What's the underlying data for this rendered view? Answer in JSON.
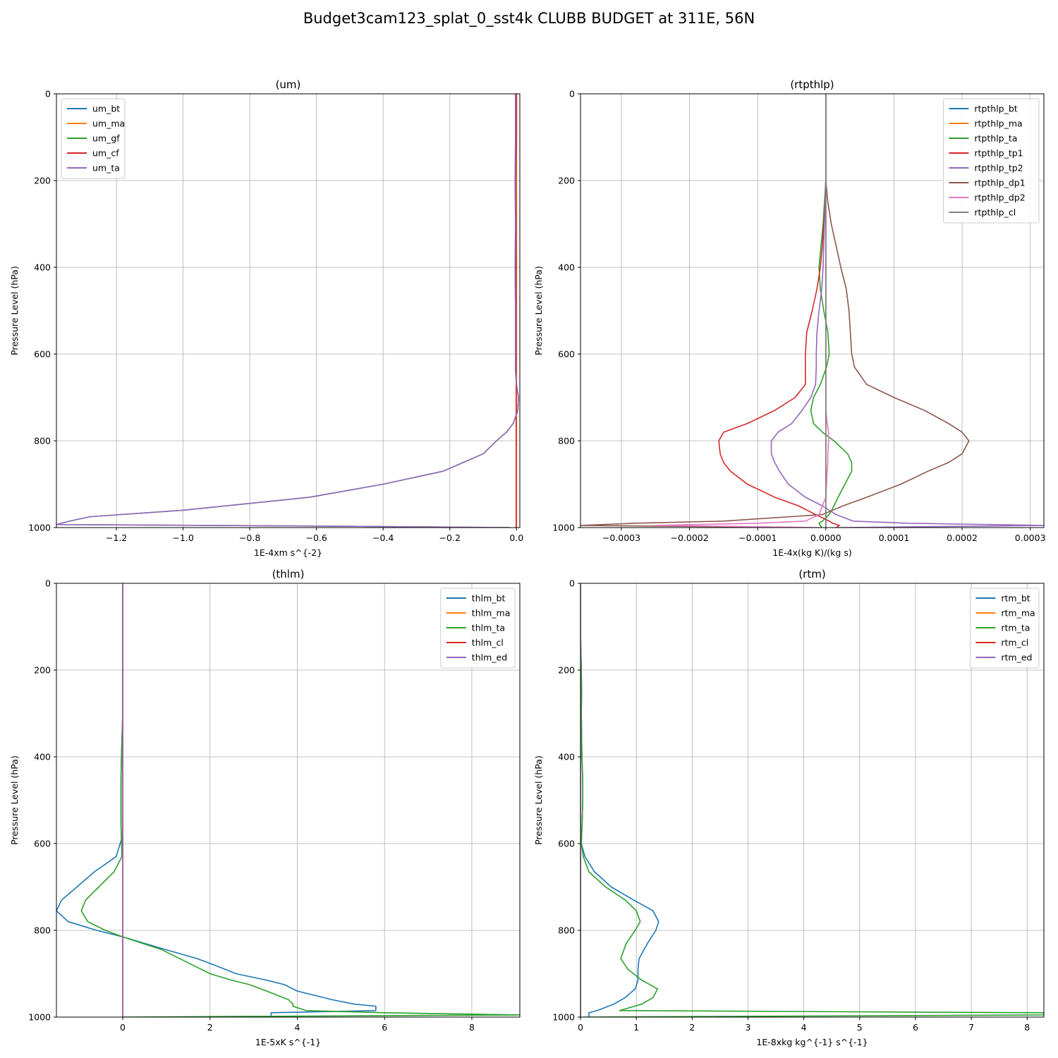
{
  "figure_title": "Budget3cam123_splat_0_sst4k CLUBB BUDGET at 311E, 56N",
  "colors": {
    "C0": "#1f77b4",
    "C1": "#ff7f0e",
    "C2": "#2ca02c",
    "C3": "#d62728",
    "C4": "#9467bd",
    "C5": "#8c564b",
    "C6": "#e377c2",
    "C7": "#7f7f7f"
  },
  "chart_data": [
    {
      "type": "line",
      "title": "(um)",
      "xlabel": "1E-4xm s^{-2}",
      "ylabel": "Pressure Level (hPa)",
      "xlim": [
        -1.38,
        0.01
      ],
      "ylim": [
        1000,
        0
      ],
      "xticks": [
        -1.2,
        -1.0,
        -0.8,
        -0.6,
        -0.4,
        -0.2,
        0.0
      ],
      "xtick_labels": [
        "−1.2",
        "−1.0",
        "−0.8",
        "−0.6",
        "−0.4",
        "−0.2",
        "0.0"
      ],
      "yticks": [
        0,
        200,
        400,
        600,
        800,
        1000
      ],
      "ytick_labels": [
        "0",
        "200",
        "400",
        "600",
        "800",
        "1000"
      ],
      "grid": true,
      "legend_position": "upper-left",
      "y": [
        0,
        100,
        200,
        300,
        400,
        500,
        600,
        640,
        670,
        700,
        730,
        760,
        780,
        800,
        830,
        850,
        870,
        900,
        930,
        960,
        975,
        985,
        993,
        997,
        1000
      ],
      "series": [
        {
          "name": "um_bt",
          "color": "C0",
          "values": [
            0,
            0,
            0,
            0,
            0,
            0,
            0,
            0,
            0,
            0,
            0,
            0,
            0,
            0,
            0,
            0,
            0,
            0,
            0,
            0,
            0,
            0,
            0,
            0,
            0
          ]
        },
        {
          "name": "um_ma",
          "color": "C1",
          "values": [
            0,
            0,
            0,
            0,
            0,
            0,
            0,
            0,
            0,
            0,
            0,
            0,
            0,
            0,
            0,
            0,
            0,
            0,
            0,
            0,
            0,
            0,
            0,
            0,
            0
          ]
        },
        {
          "name": "um_gf",
          "color": "C2",
          "values": [
            -0.003,
            -0.003,
            -0.004,
            -0.003,
            -0.004,
            -0.003,
            -0.003,
            -0.003,
            0,
            0.006,
            0.004,
            -0.01,
            -0.03,
            -0.06,
            -0.1,
            -0.16,
            -0.22,
            -0.4,
            -0.62,
            -1.0,
            -1.28,
            -1.34,
            -1.38,
            -0.5,
            -0.02
          ]
        },
        {
          "name": "um_cf",
          "color": "C3",
          "values": [
            0,
            0,
            -0.002,
            -0.001,
            -0.001,
            -0.001,
            -0.001,
            -0.001,
            -0.001,
            -0.001,
            -0.001,
            -0.001,
            -0.001,
            -0.001,
            -0.001,
            -0.001,
            -0.001,
            -0.001,
            -0.001,
            -0.001,
            -0.001,
            -0.001,
            -0.001,
            -0.001,
            -0.001
          ]
        },
        {
          "name": "um_ta",
          "color": "C4",
          "values": [
            -0.003,
            -0.003,
            -0.004,
            -0.003,
            -0.004,
            -0.003,
            -0.003,
            -0.003,
            0,
            0.006,
            0.004,
            -0.01,
            -0.03,
            -0.06,
            -0.1,
            -0.16,
            -0.22,
            -0.4,
            -0.62,
            -1.0,
            -1.28,
            -1.34,
            -1.38,
            -0.5,
            -0.02
          ]
        }
      ]
    },
    {
      "type": "line",
      "title": "(rtpthlp)",
      "xlabel": "1E-4x(kg K)/(kg s)",
      "ylabel": "Pressure Level (hPa)",
      "xlim": [
        -0.00036,
        0.00032
      ],
      "ylim": [
        1000,
        0
      ],
      "xticks": [
        -0.0003,
        -0.0002,
        -0.0001,
        0.0,
        0.0001,
        0.0002,
        0.0003
      ],
      "xtick_labels": [
        "−0.0003",
        "−0.0002",
        "−0.0001",
        "0.0000",
        "0.0001",
        "0.0002",
        "0.0003"
      ],
      "yticks": [
        0,
        200,
        400,
        600,
        800,
        1000
      ],
      "ytick_labels": [
        "0",
        "200",
        "400",
        "600",
        "800",
        "1000"
      ],
      "grid": true,
      "legend_position": "upper-right",
      "y": [
        0,
        100,
        200,
        250,
        300,
        350,
        400,
        450,
        500,
        550,
        600,
        630,
        670,
        700,
        730,
        760,
        780,
        800,
        830,
        850,
        870,
        900,
        930,
        950,
        970,
        985,
        990,
        995,
        1000
      ],
      "series": [
        {
          "name": "rtpthlp_bt",
          "color": "C0",
          "values": [
            0,
            0,
            0,
            0,
            0,
            0,
            0,
            0,
            0,
            0,
            0,
            0,
            0,
            0,
            0,
            0,
            0,
            0,
            0,
            0,
            0,
            0,
            0,
            0,
            0,
            0,
            0,
            0,
            0
          ]
        },
        {
          "name": "rtpthlp_ma",
          "color": "C1",
          "values": [
            0,
            0,
            0,
            0,
            0,
            0,
            0,
            0,
            0,
            0,
            0,
            0,
            0,
            0,
            0,
            0,
            0,
            0,
            0,
            0,
            0,
            0,
            0,
            0,
            0,
            0,
            0,
            0,
            0
          ]
        },
        {
          "name": "rtpthlp_ta",
          "color": "C2",
          "values": [
            0,
            0,
            0,
            -2e-06,
            -4e-06,
            -7e-06,
            -1e-05,
            -8e-06,
            -3e-06,
            3e-06,
            5e-06,
            1e-06,
            -8e-06,
            -1.8e-05,
            -2.2e-05,
            -1.8e-05,
            -5e-06,
            1.2e-05,
            3.2e-05,
            3.8e-05,
            3.8e-05,
            2.8e-05,
            1.8e-05,
            1.2e-05,
            5e-06,
            -5e-06,
            -1e-05,
            -8e-06,
            -6e-06
          ]
        },
        {
          "name": "rtpthlp_tp1",
          "color": "C3",
          "values": [
            0,
            0,
            0,
            -1e-06,
            -3e-06,
            -5e-06,
            -8e-06,
            -1.3e-05,
            -2e-05,
            -2.8e-05,
            -3e-05,
            -3e-05,
            -3e-05,
            -4.5e-05,
            -7.5e-05,
            -0.000115,
            -0.00015,
            -0.000157,
            -0.000155,
            -0.00015,
            -0.00014,
            -0.000115,
            -7.5e-05,
            -4e-05,
            -1.5e-05,
            5e-06,
            1e-05,
            2e-05,
            1.5e-05
          ]
        },
        {
          "name": "rtpthlp_tp2",
          "color": "C4",
          "values": [
            0,
            0,
            0,
            -1e-06,
            -2e-06,
            -3e-06,
            -4e-06,
            -6e-06,
            -1e-05,
            -1.3e-05,
            -1.4e-05,
            -1.4e-05,
            -1.5e-05,
            -2.2e-05,
            -3.5e-05,
            -5e-05,
            -7e-05,
            -8e-05,
            -8e-05,
            -7.5e-05,
            -6.8e-05,
            -5.5e-05,
            -3e-05,
            -5e-06,
            1.5e-05,
            4e-05,
            0.00012,
            0.00032,
            2e-05
          ]
        },
        {
          "name": "rtpthlp_dp1",
          "color": "C5",
          "values": [
            0,
            0,
            0,
            3e-06,
            8e-06,
            1.5e-05,
            2.2e-05,
            3e-05,
            3.4e-05,
            3.6e-05,
            3.8e-05,
            4.2e-05,
            6e-05,
            0.0001,
            0.000145,
            0.00018,
            0.0002,
            0.00021,
            0.0002,
            0.00018,
            0.00015,
            0.00011,
            6e-05,
            2.5e-05,
            -5e-06,
            -0.00015,
            -0.00028,
            -0.00036,
            -2e-05
          ]
        },
        {
          "name": "rtpthlp_dp2",
          "color": "C6",
          "values": [
            0,
            0,
            0,
            0,
            0,
            0,
            0,
            0,
            0,
            0,
            0,
            0,
            0,
            0,
            0,
            2e-06,
            4e-06,
            4e-06,
            3e-06,
            3e-06,
            2e-06,
            1e-06,
            0,
            -5e-06,
            -1e-05,
            -3e-05,
            -0.0001,
            -0.00025,
            -1e-05
          ]
        },
        {
          "name": "rtpthlp_cl",
          "color": "C7",
          "values": [
            0,
            0,
            0,
            0,
            0,
            0,
            0,
            0,
            0,
            0,
            0,
            0,
            0,
            0,
            0,
            0,
            0,
            0,
            0,
            0,
            0,
            0,
            0,
            0,
            0,
            0,
            0,
            0,
            0
          ]
        }
      ]
    },
    {
      "type": "line",
      "title": "(thlm)",
      "xlabel": "1E-5xK s^{-1}",
      "ylabel": "Pressure Level (hPa)",
      "xlim": [
        -1.52,
        9.1
      ],
      "ylim": [
        1000,
        0
      ],
      "xticks": [
        0,
        2,
        4,
        6,
        8
      ],
      "xtick_labels": [
        "0",
        "2",
        "4",
        "6",
        "8"
      ],
      "yticks": [
        0,
        200,
        400,
        600,
        800,
        1000
      ],
      "ytick_labels": [
        "0",
        "200",
        "400",
        "600",
        "800",
        "1000"
      ],
      "grid": true,
      "legend_position": "upper-right",
      "y": [
        0,
        100,
        200,
        300,
        400,
        450,
        500,
        550,
        590,
        630,
        665,
        700,
        730,
        755,
        780,
        800,
        815,
        845,
        865,
        880,
        900,
        915,
        925,
        940,
        960,
        970,
        975,
        985,
        990,
        995,
        1000
      ],
      "series": [
        {
          "name": "thlm_bt",
          "color": "C0",
          "values": [
            0,
            0,
            0,
            0,
            -0.03,
            -0.04,
            -0.04,
            -0.04,
            -0.03,
            -0.15,
            -0.65,
            -1.05,
            -1.4,
            -1.52,
            -1.25,
            -0.6,
            0,
            1.0,
            1.7,
            2.1,
            2.6,
            3.3,
            3.7,
            4.0,
            4.8,
            5.3,
            5.8,
            5.8,
            3.4,
            3.4,
            3.4
          ]
        },
        {
          "name": "thlm_ma",
          "color": "C1",
          "values": [
            0,
            0,
            0,
            0,
            0,
            0,
            0,
            0,
            0,
            0,
            0,
            0,
            0,
            0,
            0,
            0,
            0,
            0,
            0,
            0,
            0,
            0,
            0,
            0,
            0,
            0,
            0,
            0,
            0,
            0,
            0
          ]
        },
        {
          "name": "thlm_ta",
          "color": "C2",
          "values": [
            0,
            0,
            0,
            0,
            -0.03,
            -0.04,
            -0.04,
            -0.04,
            -0.03,
            -0.02,
            -0.2,
            -0.55,
            -0.85,
            -0.95,
            -0.8,
            -0.4,
            0,
            0.9,
            1.3,
            1.6,
            2.0,
            2.5,
            2.9,
            3.3,
            3.8,
            3.9,
            3.9,
            4.2,
            6.0,
            9.1,
            0
          ]
        },
        {
          "name": "thlm_cl",
          "color": "C3",
          "values": [
            0,
            0,
            0,
            0,
            0,
            0,
            0,
            0,
            0,
            0,
            0,
            0,
            0,
            0,
            0,
            0,
            0,
            0,
            0,
            0,
            0,
            0,
            0,
            0,
            0,
            0,
            0,
            0,
            0,
            0,
            0
          ]
        },
        {
          "name": "thlm_ed",
          "color": "C4",
          "values": [
            0,
            0,
            0,
            0,
            0,
            0,
            0,
            0,
            0,
            0,
            0,
            0,
            0,
            0,
            0,
            0,
            0,
            0,
            0,
            0,
            0,
            0,
            0,
            0,
            0,
            0,
            0,
            0,
            0,
            0,
            0
          ]
        }
      ]
    },
    {
      "type": "line",
      "title": "(rtm)",
      "xlabel": "1E-8xkg kg^{-1} s^{-1}",
      "ylabel": "Pressure Level (hPa)",
      "xlim": [
        0,
        8.3
      ],
      "ylim": [
        1000,
        0
      ],
      "xticks": [
        0,
        1,
        2,
        3,
        4,
        5,
        6,
        7,
        8
      ],
      "xtick_labels": [
        "0",
        "1",
        "2",
        "3",
        "4",
        "5",
        "6",
        "7",
        "8"
      ],
      "yticks": [
        0,
        200,
        400,
        600,
        800,
        1000
      ],
      "ytick_labels": [
        "0",
        "200",
        "400",
        "600",
        "800",
        "1000"
      ],
      "grid": true,
      "legend_position": "upper-right",
      "y": [
        0,
        100,
        150,
        200,
        250,
        300,
        400,
        450,
        500,
        550,
        600,
        630,
        665,
        700,
        730,
        755,
        780,
        800,
        830,
        865,
        890,
        915,
        935,
        955,
        970,
        985,
        990,
        995,
        1000
      ],
      "series": [
        {
          "name": "rtm_bt",
          "color": "C0",
          "values": [
            0,
            0,
            0.005,
            0.015,
            0.02,
            0.015,
            0.025,
            0.04,
            0.04,
            0.03,
            0.015,
            0.08,
            0.25,
            0.55,
            0.95,
            1.3,
            1.4,
            1.35,
            1.2,
            1.05,
            1.03,
            1.03,
            0.98,
            0.8,
            0.6,
            0.3,
            0.15,
            0.15,
            0.15
          ]
        },
        {
          "name": "rtm_ma",
          "color": "C1",
          "values": [
            0,
            0,
            0,
            0,
            0,
            0,
            0,
            0,
            0,
            0,
            0,
            0,
            0,
            0,
            0,
            0,
            0,
            0,
            0,
            0,
            0,
            0,
            0,
            0,
            0,
            0,
            0,
            0,
            0
          ]
        },
        {
          "name": "rtm_ta",
          "color": "C2",
          "values": [
            0,
            0,
            0.005,
            0.015,
            0.02,
            0.015,
            0.025,
            0.04,
            0.04,
            0.03,
            0.015,
            0.05,
            0.15,
            0.45,
            0.8,
            1.0,
            1.07,
            0.98,
            0.82,
            0.72,
            0.85,
            1.1,
            1.38,
            1.3,
            1.1,
            0.7,
            8.3,
            8.3,
            0.05
          ]
        },
        {
          "name": "rtm_cl",
          "color": "C3",
          "values": [
            0,
            0,
            0,
            0,
            0,
            0,
            0,
            0,
            0,
            0,
            0,
            0,
            0,
            0,
            0,
            0,
            0,
            0,
            0,
            0,
            0,
            0,
            0,
            0,
            0,
            0,
            0,
            0,
            0
          ]
        },
        {
          "name": "rtm_ed",
          "color": "C4",
          "values": [
            0,
            0,
            0,
            0,
            0,
            0,
            0,
            0,
            0,
            0,
            0,
            0,
            0,
            0,
            0,
            0,
            0,
            0,
            0,
            0,
            0,
            0,
            0,
            0,
            0,
            0,
            0,
            0,
            0
          ]
        }
      ]
    }
  ]
}
